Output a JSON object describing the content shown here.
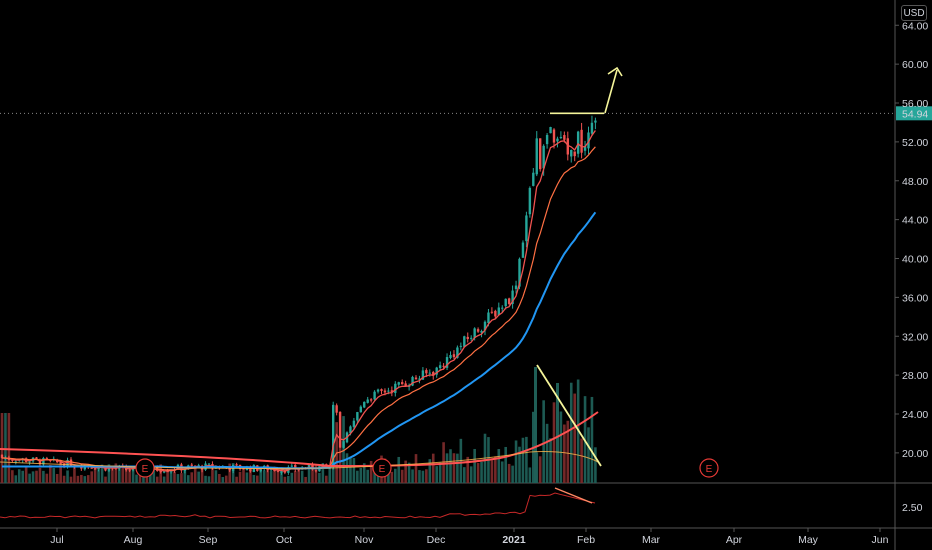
{
  "currency_label": "USD",
  "price_axis": {
    "ticks": [
      "64.00",
      "60.00",
      "56.00",
      "52.00",
      "48.00",
      "44.00",
      "40.00",
      "36.00",
      "32.00",
      "28.00",
      "24.00",
      "20.00"
    ],
    "tick_values": [
      64,
      60,
      56,
      52,
      48,
      44,
      40,
      36,
      32,
      28,
      24,
      20
    ],
    "last_price": "54.94",
    "last_price_value": 54.94,
    "ylim": [
      16.9,
      66.6
    ]
  },
  "indicator_axis": {
    "ticks": [
      "2.50"
    ],
    "tick_values": [
      2.5
    ]
  },
  "time_axis": {
    "labels": [
      "Jul",
      "Aug",
      "Sep",
      "Oct",
      "Nov",
      "Dec",
      "2021",
      "Feb",
      "Mar",
      "Apr",
      "May",
      "Jun"
    ],
    "bold_label": "2021"
  },
  "earnings_markers": [
    {
      "label": "E",
      "date": "Aug",
      "color": "#e53935"
    },
    {
      "label": "E",
      "date": "Nov",
      "color": "#e53935"
    },
    {
      "label": "E",
      "date": "Mar",
      "color": "#e53935"
    }
  ],
  "colors": {
    "up": "#26a69a",
    "down": "#ef5350",
    "ma_short": "#ef5350",
    "ma_mid": "#ff7043",
    "ma_long": "#2196f3",
    "volume_ma": "#ff5252",
    "annotation": "#f5f59a",
    "last_price_bg": "#26a69a"
  },
  "chart_data": {
    "type": "candlestick",
    "note_series": "daily price with moving averages and volume",
    "price_range_visible": [
      17.5,
      55.8
    ],
    "key_points": [
      {
        "x": "Jul",
        "close": 19.0
      },
      {
        "x": "Aug",
        "close": 18.2
      },
      {
        "x": "Sep",
        "close": 18.6
      },
      {
        "x": "Oct",
        "close": 18.4
      },
      {
        "x": "Nov",
        "close": 25.5
      },
      {
        "x": "Dec",
        "close": 28.5
      },
      {
        "x": "2021",
        "close": 36.5
      },
      {
        "x": "Feb",
        "close": 51.5
      },
      {
        "x": "last",
        "close": 54.94
      }
    ],
    "resistance_level": 54.94,
    "annotations": [
      "resistance line near highs",
      "upward arrow",
      "falling volume trend line"
    ]
  }
}
